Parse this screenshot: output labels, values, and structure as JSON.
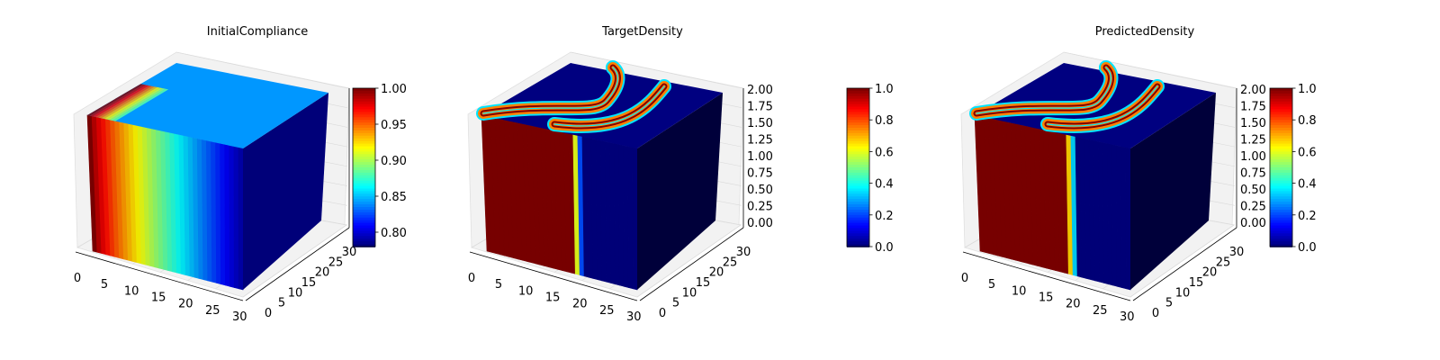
{
  "chart_data": [
    {
      "type": "voxel3d",
      "title": "InitialCompliance",
      "x_ticks": [
        "0",
        "5",
        "10",
        "15",
        "20",
        "25",
        "30"
      ],
      "y_ticks": [
        "0",
        "5",
        "10",
        "15",
        "20",
        "25",
        "30"
      ],
      "z_ticks": [],
      "colorbar": {
        "colormap": "jet",
        "range": [
          0.78,
          1.0
        ],
        "ticks": [
          "0.80",
          "0.85",
          "0.90",
          "0.95",
          "1.00"
        ]
      },
      "field": {
        "kind": "gradient",
        "left_value": 1.0,
        "right_value": 0.79,
        "top_value": 0.84,
        "side_value": 0.8
      }
    },
    {
      "type": "voxel3d",
      "title": "TargetDensity",
      "x_ticks": [
        "0",
        "5",
        "10",
        "15",
        "20",
        "25",
        "30"
      ],
      "y_ticks": [
        "0",
        "5",
        "10",
        "15",
        "20",
        "25",
        "30"
      ],
      "z_ticks": [
        "0.00",
        "0.25",
        "0.50",
        "0.75",
        "1.00",
        "1.25",
        "1.50",
        "1.75",
        "2.00"
      ],
      "colorbar": {
        "colormap": "jet",
        "range": [
          0.0,
          1.0
        ],
        "ticks": [
          "0.0",
          "0.2",
          "0.4",
          "0.6",
          "0.8",
          "1.0"
        ]
      },
      "field": {
        "kind": "density",
        "solid_until": 19,
        "transition_width": 2.5,
        "top_band": "curved",
        "background": 0.0
      }
    },
    {
      "type": "voxel3d",
      "title": "PredictedDensity",
      "x_ticks": [
        "0",
        "5",
        "10",
        "15",
        "20",
        "25",
        "30"
      ],
      "y_ticks": [
        "0",
        "5",
        "10",
        "15",
        "20",
        "25",
        "30"
      ],
      "z_ticks": [
        "0.00",
        "0.25",
        "0.50",
        "0.75",
        "1.00",
        "1.25",
        "1.50",
        "1.75",
        "2.00"
      ],
      "colorbar": {
        "colormap": "jet",
        "range": [
          0.0,
          1.0
        ],
        "ticks": [
          "0.0",
          "0.2",
          "0.4",
          "0.6",
          "0.8",
          "1.0"
        ]
      },
      "field": {
        "kind": "density",
        "solid_until": 19,
        "transition_width": 3,
        "top_band": "curved",
        "background": 0.0
      }
    }
  ]
}
